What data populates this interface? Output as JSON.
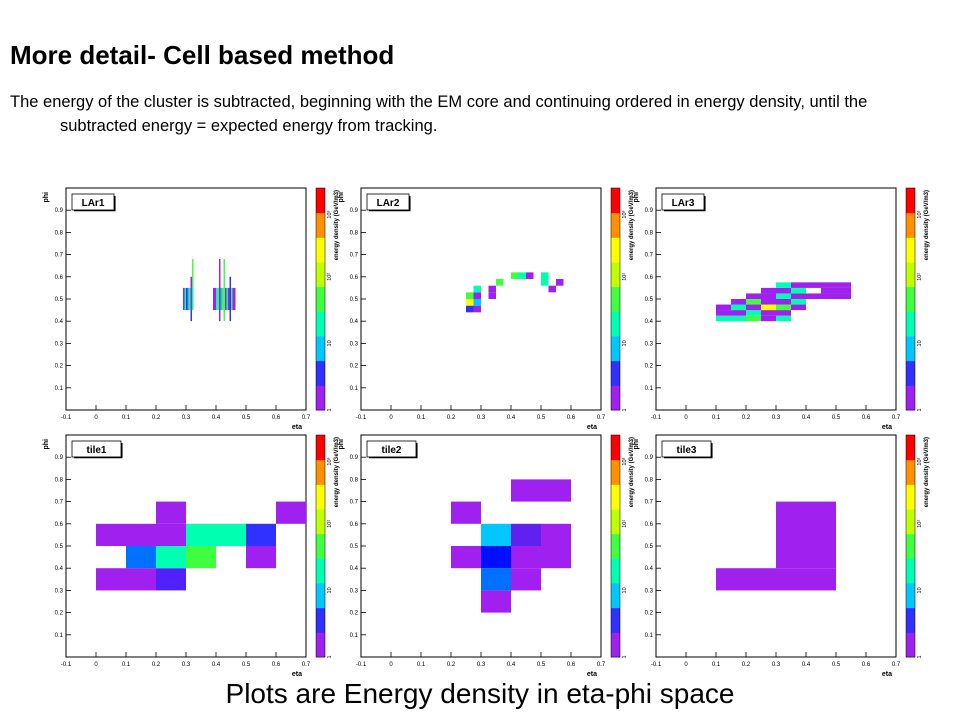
{
  "slide": {
    "title": "More detail- Cell based method",
    "description": "The energy of the cluster is subtracted, beginning with the EM core and continuing ordered in energy density, until the subtracted energy = expected energy from tracking.",
    "caption": "Plots are Energy density in eta-phi space"
  },
  "colorscale": {
    "label": "energy density (GeV/m3)",
    "ticks": [
      "1",
      "10",
      "10²",
      "10³"
    ],
    "colors": [
      "#a020f0",
      "#3030ff",
      "#00c8ff",
      "#00ffb0",
      "#40ff40",
      "#c0ff00",
      "#ffff00",
      "#ff9000",
      "#ff0000"
    ]
  },
  "chart_data": [
    {
      "type": "heatmap",
      "title": "LAr1",
      "xlabel": "eta",
      "ylabel": "phi",
      "xlim": [
        -0.1,
        0.7
      ],
      "ylim": [
        0,
        1
      ],
      "xticks": [
        "-0.1",
        "0",
        "0.1",
        "0.2",
        "0.3",
        "0.4",
        "0.5",
        "0.6",
        "0.7"
      ],
      "yticks": [
        "0.1",
        "0.2",
        "0.3",
        "0.4",
        "0.5",
        "0.6",
        "0.7",
        "0.8",
        "0.9"
      ],
      "cells": [
        {
          "x0": 0.29,
          "x1": 0.295,
          "y0": 0.45,
          "y1": 0.55,
          "c": "#a020f0"
        },
        {
          "x0": 0.295,
          "x1": 0.3,
          "y0": 0.45,
          "y1": 0.55,
          "c": "#00ffb0"
        },
        {
          "x0": 0.3,
          "x1": 0.305,
          "y0": 0.45,
          "y1": 0.55,
          "c": "#3030ff"
        },
        {
          "x0": 0.305,
          "x1": 0.31,
          "y0": 0.45,
          "y1": 0.55,
          "c": "#00c8ff"
        },
        {
          "x0": 0.31,
          "x1": 0.315,
          "y0": 0.45,
          "y1": 0.55,
          "c": "#40ff40"
        },
        {
          "x0": 0.315,
          "x1": 0.32,
          "y0": 0.4,
          "y1": 0.45,
          "c": "#3030ff"
        },
        {
          "x0": 0.315,
          "x1": 0.32,
          "y0": 0.45,
          "y1": 0.6,
          "c": "#a020f0"
        },
        {
          "x0": 0.32,
          "x1": 0.325,
          "y0": 0.55,
          "y1": 0.68,
          "c": "#40ff40"
        },
        {
          "x0": 0.32,
          "x1": 0.325,
          "y0": 0.45,
          "y1": 0.55,
          "c": "#00ffb0"
        },
        {
          "x0": 0.39,
          "x1": 0.4,
          "y0": 0.45,
          "y1": 0.55,
          "c": "#a020f0"
        },
        {
          "x0": 0.4,
          "x1": 0.405,
          "y0": 0.45,
          "y1": 0.55,
          "c": "#00ffb0"
        },
        {
          "x0": 0.405,
          "x1": 0.41,
          "y0": 0.45,
          "y1": 0.55,
          "c": "#40ff40"
        },
        {
          "x0": 0.41,
          "x1": 0.415,
          "y0": 0.4,
          "y1": 0.68,
          "c": "#a020f0"
        },
        {
          "x0": 0.415,
          "x1": 0.42,
          "y0": 0.45,
          "y1": 0.55,
          "c": "#00c8ff"
        },
        {
          "x0": 0.42,
          "x1": 0.425,
          "y0": 0.45,
          "y1": 0.55,
          "c": "#40ff40"
        },
        {
          "x0": 0.425,
          "x1": 0.43,
          "y0": 0.4,
          "y1": 0.68,
          "c": "#40ff40"
        },
        {
          "x0": 0.43,
          "x1": 0.435,
          "y0": 0.45,
          "y1": 0.55,
          "c": "#a020f0"
        },
        {
          "x0": 0.435,
          "x1": 0.44,
          "y0": 0.45,
          "y1": 0.55,
          "c": "#00ffb0"
        },
        {
          "x0": 0.44,
          "x1": 0.445,
          "y0": 0.45,
          "y1": 0.55,
          "c": "#a020f0"
        },
        {
          "x0": 0.445,
          "x1": 0.45,
          "y0": 0.4,
          "y1": 0.6,
          "c": "#3030ff"
        },
        {
          "x0": 0.45,
          "x1": 0.455,
          "y0": 0.45,
          "y1": 0.55,
          "c": "#40ff40"
        },
        {
          "x0": 0.455,
          "x1": 0.465,
          "y0": 0.45,
          "y1": 0.55,
          "c": "#a020f0"
        }
      ]
    },
    {
      "type": "heatmap",
      "title": "LAr2",
      "xlabel": "eta",
      "ylabel": "phi",
      "xlim": [
        -0.1,
        0.7
      ],
      "ylim": [
        0,
        1
      ],
      "xticks": [
        "-0.1",
        "0",
        "0.1",
        "0.2",
        "0.3",
        "0.4",
        "0.5",
        "0.6",
        "0.7"
      ],
      "yticks": [
        "0.1",
        "0.2",
        "0.3",
        "0.4",
        "0.5",
        "0.6",
        "0.7",
        "0.8",
        "0.9"
      ],
      "cells": [
        {
          "x0": 0.25,
          "x1": 0.275,
          "y0": 0.44,
          "y1": 0.47,
          "c": "#3030ff"
        },
        {
          "x0": 0.275,
          "x1": 0.3,
          "y0": 0.44,
          "y1": 0.47,
          "c": "#a020f0"
        },
        {
          "x0": 0.25,
          "x1": 0.275,
          "y0": 0.47,
          "y1": 0.5,
          "c": "#ffff00"
        },
        {
          "x0": 0.275,
          "x1": 0.3,
          "y0": 0.47,
          "y1": 0.5,
          "c": "#00c8ff"
        },
        {
          "x0": 0.25,
          "x1": 0.275,
          "y0": 0.5,
          "y1": 0.53,
          "c": "#40ff40"
        },
        {
          "x0": 0.275,
          "x1": 0.3,
          "y0": 0.5,
          "y1": 0.53,
          "c": "#a020f0"
        },
        {
          "x0": 0.275,
          "x1": 0.3,
          "y0": 0.53,
          "y1": 0.56,
          "c": "#00ffb0"
        },
        {
          "x0": 0.325,
          "x1": 0.35,
          "y0": 0.5,
          "y1": 0.53,
          "c": "#a020f0"
        },
        {
          "x0": 0.325,
          "x1": 0.35,
          "y0": 0.53,
          "y1": 0.56,
          "c": "#a020f0"
        },
        {
          "x0": 0.35,
          "x1": 0.375,
          "y0": 0.56,
          "y1": 0.59,
          "c": "#40ff40"
        },
        {
          "x0": 0.4,
          "x1": 0.425,
          "y0": 0.59,
          "y1": 0.62,
          "c": "#40ff40"
        },
        {
          "x0": 0.425,
          "x1": 0.45,
          "y0": 0.59,
          "y1": 0.62,
          "c": "#00ffb0"
        },
        {
          "x0": 0.45,
          "x1": 0.475,
          "y0": 0.59,
          "y1": 0.62,
          "c": "#a020f0"
        },
        {
          "x0": 0.5,
          "x1": 0.525,
          "y0": 0.56,
          "y1": 0.59,
          "c": "#00ffb0"
        },
        {
          "x0": 0.5,
          "x1": 0.525,
          "y0": 0.59,
          "y1": 0.62,
          "c": "#00ffb0"
        },
        {
          "x0": 0.525,
          "x1": 0.55,
          "y0": 0.53,
          "y1": 0.56,
          "c": "#a020f0"
        },
        {
          "x0": 0.55,
          "x1": 0.575,
          "y0": 0.56,
          "y1": 0.59,
          "c": "#a020f0"
        }
      ]
    },
    {
      "type": "heatmap",
      "title": "LAr3",
      "xlabel": "eta",
      "ylabel": "phi",
      "xlim": [
        -0.1,
        0.7
      ],
      "ylim": [
        0,
        1
      ],
      "xticks": [
        "-0.1",
        "0",
        "0.1",
        "0.2",
        "0.3",
        "0.4",
        "0.5",
        "0.6",
        "0.7"
      ],
      "yticks": [
        "0.1",
        "0.2",
        "0.3",
        "0.4",
        "0.5",
        "0.6",
        "0.7",
        "0.8",
        "0.9"
      ],
      "cells": [
        {
          "x0": 0.1,
          "x1": 0.15,
          "y0": 0.4,
          "y1": 0.425,
          "c": "#00ffb0"
        },
        {
          "x0": 0.15,
          "x1": 0.2,
          "y0": 0.4,
          "y1": 0.425,
          "c": "#00ffb0"
        },
        {
          "x0": 0.2,
          "x1": 0.25,
          "y0": 0.4,
          "y1": 0.425,
          "c": "#40ff40"
        },
        {
          "x0": 0.25,
          "x1": 0.3,
          "y0": 0.4,
          "y1": 0.425,
          "c": "#a020f0"
        },
        {
          "x0": 0.3,
          "x1": 0.35,
          "y0": 0.4,
          "y1": 0.425,
          "c": "#00ffb0"
        },
        {
          "x0": 0.1,
          "x1": 0.15,
          "y0": 0.425,
          "y1": 0.45,
          "c": "#a020f0"
        },
        {
          "x0": 0.15,
          "x1": 0.2,
          "y0": 0.425,
          "y1": 0.45,
          "c": "#a020f0"
        },
        {
          "x0": 0.2,
          "x1": 0.25,
          "y0": 0.425,
          "y1": 0.45,
          "c": "#00ffb0"
        },
        {
          "x0": 0.25,
          "x1": 0.3,
          "y0": 0.425,
          "y1": 0.45,
          "c": "#a020f0"
        },
        {
          "x0": 0.3,
          "x1": 0.35,
          "y0": 0.425,
          "y1": 0.45,
          "c": "#a020f0"
        },
        {
          "x0": 0.1,
          "x1": 0.15,
          "y0": 0.45,
          "y1": 0.475,
          "c": "#a020f0"
        },
        {
          "x0": 0.15,
          "x1": 0.2,
          "y0": 0.45,
          "y1": 0.475,
          "c": "#00ffb0"
        },
        {
          "x0": 0.2,
          "x1": 0.25,
          "y0": 0.45,
          "y1": 0.475,
          "c": "#a020f0"
        },
        {
          "x0": 0.25,
          "x1": 0.3,
          "y0": 0.45,
          "y1": 0.475,
          "c": "#ffff00"
        },
        {
          "x0": 0.3,
          "x1": 0.35,
          "y0": 0.45,
          "y1": 0.475,
          "c": "#40ff40"
        },
        {
          "x0": 0.35,
          "x1": 0.4,
          "y0": 0.45,
          "y1": 0.475,
          "c": "#a020f0"
        },
        {
          "x0": 0.15,
          "x1": 0.2,
          "y0": 0.475,
          "y1": 0.5,
          "c": "#a020f0"
        },
        {
          "x0": 0.2,
          "x1": 0.25,
          "y0": 0.475,
          "y1": 0.5,
          "c": "#40ff40"
        },
        {
          "x0": 0.25,
          "x1": 0.3,
          "y0": 0.475,
          "y1": 0.5,
          "c": "#a020f0"
        },
        {
          "x0": 0.3,
          "x1": 0.35,
          "y0": 0.475,
          "y1": 0.5,
          "c": "#a020f0"
        },
        {
          "x0": 0.35,
          "x1": 0.4,
          "y0": 0.475,
          "y1": 0.5,
          "c": "#00ffb0"
        },
        {
          "x0": 0.2,
          "x1": 0.25,
          "y0": 0.5,
          "y1": 0.525,
          "c": "#a020f0"
        },
        {
          "x0": 0.25,
          "x1": 0.3,
          "y0": 0.5,
          "y1": 0.525,
          "c": "#a020f0"
        },
        {
          "x0": 0.3,
          "x1": 0.35,
          "y0": 0.5,
          "y1": 0.525,
          "c": "#00ffb0"
        },
        {
          "x0": 0.35,
          "x1": 0.4,
          "y0": 0.5,
          "y1": 0.525,
          "c": "#a020f0"
        },
        {
          "x0": 0.4,
          "x1": 0.45,
          "y0": 0.5,
          "y1": 0.525,
          "c": "#a020f0"
        },
        {
          "x0": 0.45,
          "x1": 0.5,
          "y0": 0.5,
          "y1": 0.525,
          "c": "#a020f0"
        },
        {
          "x0": 0.5,
          "x1": 0.55,
          "y0": 0.5,
          "y1": 0.525,
          "c": "#a020f0"
        },
        {
          "x0": 0.25,
          "x1": 0.3,
          "y0": 0.525,
          "y1": 0.55,
          "c": "#a020f0"
        },
        {
          "x0": 0.3,
          "x1": 0.35,
          "y0": 0.525,
          "y1": 0.55,
          "c": "#a020f0"
        },
        {
          "x0": 0.35,
          "x1": 0.4,
          "y0": 0.525,
          "y1": 0.55,
          "c": "#00ffb0"
        },
        {
          "x0": 0.45,
          "x1": 0.5,
          "y0": 0.525,
          "y1": 0.55,
          "c": "#a020f0"
        },
        {
          "x0": 0.5,
          "x1": 0.55,
          "y0": 0.525,
          "y1": 0.55,
          "c": "#a020f0"
        },
        {
          "x0": 0.3,
          "x1": 0.35,
          "y0": 0.55,
          "y1": 0.575,
          "c": "#00ffb0"
        },
        {
          "x0": 0.35,
          "x1": 0.4,
          "y0": 0.55,
          "y1": 0.575,
          "c": "#a020f0"
        },
        {
          "x0": 0.4,
          "x1": 0.45,
          "y0": 0.55,
          "y1": 0.575,
          "c": "#a020f0"
        },
        {
          "x0": 0.45,
          "x1": 0.5,
          "y0": 0.55,
          "y1": 0.575,
          "c": "#a020f0"
        },
        {
          "x0": 0.5,
          "x1": 0.55,
          "y0": 0.55,
          "y1": 0.575,
          "c": "#a020f0"
        }
      ]
    },
    {
      "type": "heatmap",
      "title": "tile1",
      "xlabel": "eta",
      "ylabel": "phi",
      "xlim": [
        -0.1,
        0.7
      ],
      "ylim": [
        0,
        1
      ],
      "xticks": [
        "-0.1",
        "0",
        "0.1",
        "0.2",
        "0.3",
        "0.4",
        "0.5",
        "0.6",
        "0.7"
      ],
      "yticks": [
        "0.1",
        "0.2",
        "0.3",
        "0.4",
        "0.5",
        "0.6",
        "0.7",
        "0.8",
        "0.9"
      ],
      "cells": [
        {
          "x0": 0.0,
          "x1": 0.1,
          "y0": 0.3,
          "y1": 0.4,
          "c": "#a020f0"
        },
        {
          "x0": 0.1,
          "x1": 0.2,
          "y0": 0.3,
          "y1": 0.4,
          "c": "#a020f0"
        },
        {
          "x0": 0.2,
          "x1": 0.3,
          "y0": 0.3,
          "y1": 0.4,
          "c": "#5020ff"
        },
        {
          "x0": 0.1,
          "x1": 0.2,
          "y0": 0.4,
          "y1": 0.5,
          "c": "#0070ff"
        },
        {
          "x0": 0.2,
          "x1": 0.3,
          "y0": 0.4,
          "y1": 0.5,
          "c": "#00ffb0"
        },
        {
          "x0": 0.3,
          "x1": 0.4,
          "y0": 0.4,
          "y1": 0.5,
          "c": "#40ff40"
        },
        {
          "x0": 0.5,
          "x1": 0.6,
          "y0": 0.4,
          "y1": 0.5,
          "c": "#a020f0"
        },
        {
          "x0": 0.0,
          "x1": 0.1,
          "y0": 0.5,
          "y1": 0.6,
          "c": "#a020f0"
        },
        {
          "x0": 0.1,
          "x1": 0.2,
          "y0": 0.5,
          "y1": 0.6,
          "c": "#a020f0"
        },
        {
          "x0": 0.2,
          "x1": 0.3,
          "y0": 0.5,
          "y1": 0.6,
          "c": "#a020f0"
        },
        {
          "x0": 0.3,
          "x1": 0.4,
          "y0": 0.5,
          "y1": 0.6,
          "c": "#00ffb0"
        },
        {
          "x0": 0.4,
          "x1": 0.5,
          "y0": 0.5,
          "y1": 0.6,
          "c": "#00ffb0"
        },
        {
          "x0": 0.5,
          "x1": 0.6,
          "y0": 0.5,
          "y1": 0.6,
          "c": "#3030ff"
        },
        {
          "x0": 0.2,
          "x1": 0.3,
          "y0": 0.6,
          "y1": 0.7,
          "c": "#a020f0"
        },
        {
          "x0": 0.6,
          "x1": 0.7,
          "y0": 0.6,
          "y1": 0.7,
          "c": "#a020f0"
        }
      ]
    },
    {
      "type": "heatmap",
      "title": "tile2",
      "xlabel": "eta",
      "ylabel": "phi",
      "xlim": [
        -0.1,
        0.7
      ],
      "ylim": [
        0,
        1
      ],
      "xticks": [
        "-0.1",
        "0",
        "0.1",
        "0.2",
        "0.3",
        "0.4",
        "0.5",
        "0.6",
        "0.7"
      ],
      "yticks": [
        "0.1",
        "0.2",
        "0.3",
        "0.4",
        "0.5",
        "0.6",
        "0.7",
        "0.8",
        "0.9"
      ],
      "cells": [
        {
          "x0": 0.3,
          "x1": 0.4,
          "y0": 0.2,
          "y1": 0.3,
          "c": "#a020f0"
        },
        {
          "x0": 0.3,
          "x1": 0.4,
          "y0": 0.3,
          "y1": 0.4,
          "c": "#0070ff"
        },
        {
          "x0": 0.4,
          "x1": 0.5,
          "y0": 0.3,
          "y1": 0.4,
          "c": "#a020f0"
        },
        {
          "x0": 0.2,
          "x1": 0.3,
          "y0": 0.4,
          "y1": 0.5,
          "c": "#a020f0"
        },
        {
          "x0": 0.3,
          "x1": 0.4,
          "y0": 0.4,
          "y1": 0.5,
          "c": "#0010ff"
        },
        {
          "x0": 0.4,
          "x1": 0.5,
          "y0": 0.4,
          "y1": 0.5,
          "c": "#a020f0"
        },
        {
          "x0": 0.5,
          "x1": 0.6,
          "y0": 0.4,
          "y1": 0.5,
          "c": "#a020f0"
        },
        {
          "x0": 0.3,
          "x1": 0.4,
          "y0": 0.5,
          "y1": 0.6,
          "c": "#00c8ff"
        },
        {
          "x0": 0.4,
          "x1": 0.5,
          "y0": 0.5,
          "y1": 0.6,
          "c": "#6020f0"
        },
        {
          "x0": 0.5,
          "x1": 0.6,
          "y0": 0.5,
          "y1": 0.6,
          "c": "#a020f0"
        },
        {
          "x0": 0.2,
          "x1": 0.3,
          "y0": 0.6,
          "y1": 0.7,
          "c": "#a020f0"
        },
        {
          "x0": 0.4,
          "x1": 0.5,
          "y0": 0.7,
          "y1": 0.8,
          "c": "#a020f0"
        },
        {
          "x0": 0.5,
          "x1": 0.6,
          "y0": 0.7,
          "y1": 0.8,
          "c": "#a020f0"
        }
      ]
    },
    {
      "type": "heatmap",
      "title": "tile3",
      "xlabel": "eta",
      "ylabel": "phi",
      "xlim": [
        -0.1,
        0.7
      ],
      "ylim": [
        0,
        1
      ],
      "xticks": [
        "-0.1",
        "0",
        "0.1",
        "0.2",
        "0.3",
        "0.4",
        "0.5",
        "0.6",
        "0.7"
      ],
      "yticks": [
        "0.1",
        "0.2",
        "0.3",
        "0.4",
        "0.5",
        "0.6",
        "0.7",
        "0.8",
        "0.9"
      ],
      "cells": [
        {
          "x0": 0.1,
          "x1": 0.3,
          "y0": 0.3,
          "y1": 0.4,
          "c": "#a020f0"
        },
        {
          "x0": 0.3,
          "x1": 0.5,
          "y0": 0.3,
          "y1": 0.4,
          "c": "#a020f0"
        },
        {
          "x0": 0.3,
          "x1": 0.5,
          "y0": 0.4,
          "y1": 0.7,
          "c": "#a020f0"
        }
      ]
    }
  ]
}
